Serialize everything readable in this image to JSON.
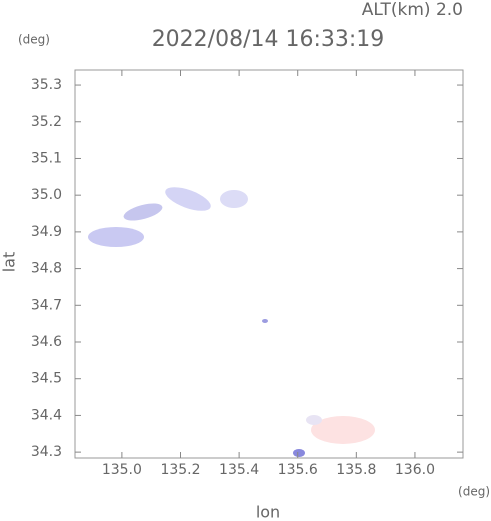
{
  "chart_data": {
    "type": "map",
    "title": "2022/08/14 16:33:19",
    "subtitle": "ALT(km) 2.0",
    "x_label": "lon",
    "y_label": "lat",
    "x_unit": "(deg)",
    "y_unit": "(deg)",
    "xlim": [
      134.84,
      136.164
    ],
    "ylim": [
      34.284,
      35.341
    ],
    "xticks": [
      {
        "value": 135.0,
        "label": "135.0"
      },
      {
        "value": 135.2,
        "label": "135.2"
      },
      {
        "value": 135.4,
        "label": "135.4"
      },
      {
        "value": 135.6,
        "label": "135.6"
      },
      {
        "value": 135.8,
        "label": "135.8"
      },
      {
        "value": 136.0,
        "label": "136.0"
      }
    ],
    "yticks": [
      {
        "value": 34.3,
        "label": "34.3"
      },
      {
        "value": 34.4,
        "label": "34.4"
      },
      {
        "value": 34.5,
        "label": "34.5"
      },
      {
        "value": 34.6,
        "label": "34.6"
      },
      {
        "value": 34.7,
        "label": "34.7"
      },
      {
        "value": 34.8,
        "label": "34.8"
      },
      {
        "value": 34.9,
        "label": "34.9"
      },
      {
        "value": 35.0,
        "label": "35.0"
      },
      {
        "value": 35.1,
        "label": "35.1"
      },
      {
        "value": 35.2,
        "label": "35.2"
      },
      {
        "value": 35.3,
        "label": "35.3"
      }
    ]
  }
}
